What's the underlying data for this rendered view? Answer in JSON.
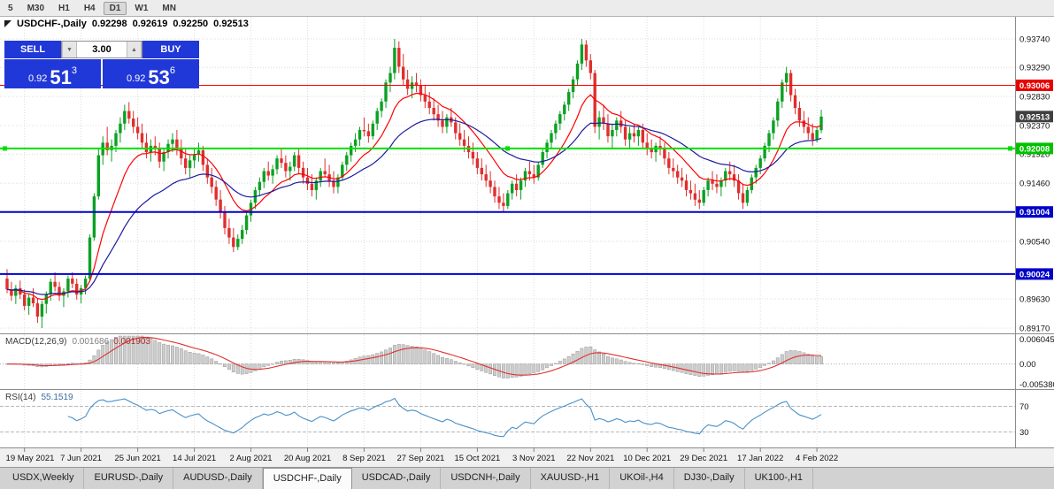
{
  "toolbar": {
    "timeframes": [
      "5",
      "M30",
      "H1",
      "H4",
      "D1",
      "W1",
      "MN"
    ],
    "active": "D1"
  },
  "header": {
    "symbol": "USDCHF-,Daily",
    "open": "0.92298",
    "high": "0.92619",
    "low": "0.92250",
    "close": "0.92513"
  },
  "one_click": {
    "sell_label": "SELL",
    "buy_label": "BUY",
    "volume": "3.00",
    "volume_down_icon": "▼",
    "volume_up_icon": "▲",
    "bid_small": "0.92",
    "bid_big": "51",
    "bid_sup": "3",
    "ask_small": "0.92",
    "ask_big": "53",
    "ask_sup": "6",
    "panel_color": "#2138d8"
  },
  "tabs": {
    "items": [
      "USDX,Weekly",
      "EURUSD-,Daily",
      "AUDUSD-,Daily",
      "USDCHF-,Daily",
      "USDCAD-,Daily",
      "USDCNH-,Daily",
      "XAUUSD-,H1",
      "UKOil-,H4",
      "DJ30-,Daily",
      "UK100-,H1"
    ],
    "active": "USDCHF-,Daily"
  },
  "chart_data": {
    "type": "candlestick",
    "symbol": "USDCHF-,Daily",
    "up_color": "#0ba123",
    "down_color": "#e02e2e",
    "ma_fast_color": "#ff0000",
    "ma_slow_color": "#1c1c9e",
    "price_scale": {
      "min": 0.8907,
      "max": 0.9409,
      "ticks": [
        0.9374,
        0.9329,
        0.9283,
        0.9237,
        0.9192,
        0.9146,
        0.9054,
        0.8963,
        0.8917
      ]
    },
    "hlines": [
      {
        "price": 0.93006,
        "label": "0.93006",
        "color": "#ff0000",
        "badge": "#e60000",
        "width": 1,
        "selected": false
      },
      {
        "price": 0.92008,
        "label": "0.92008",
        "color": "#00e000",
        "badge": "#00c000",
        "width": 2,
        "selected": true
      },
      {
        "price": 0.91004,
        "label": "0.91004",
        "color": "#0000d0",
        "badge": "#0000c8",
        "width": 2,
        "selected": false
      },
      {
        "price": 0.90024,
        "label": "0.90024",
        "color": "#0000d0",
        "badge": "#0000c8",
        "width": 2,
        "selected": false
      }
    ],
    "current_price": {
      "value": 0.92513,
      "label": "0.92513",
      "color": "#404040"
    },
    "dates": [
      "19 May 2021",
      "7 Jun 2021",
      "25 Jun 2021",
      "14 Jul 2021",
      "2 Aug 2021",
      "20 Aug 2021",
      "8 Sep 2021",
      "27 Sep 2021",
      "15 Oct 2021",
      "3 Nov 2021",
      "22 Nov 2021",
      "10 Dec 2021",
      "29 Dec 2021",
      "17 Jan 2022",
      "4 Feb 2022"
    ],
    "macd": {
      "label": "MACD(12,26,9)",
      "value": "0.001686",
      "signal": "0.001903",
      "ymax": 0.006045,
      "ymin": -0.00538,
      "axis_labels": [
        "0.006045",
        "0.00",
        "-0.005380"
      ],
      "hist_fill": "#cdcdcd",
      "hist_stroke": "#9b9b9b",
      "signal_color": "#e03030"
    },
    "rsi": {
      "label": "RSI(14)",
      "value": "55.1519",
      "levels": [
        70,
        30
      ],
      "color": "#4a90c8"
    },
    "candles": [
      [
        0.8995,
        0.901,
        0.8972,
        0.8978
      ],
      [
        0.8978,
        0.899,
        0.896,
        0.8968
      ],
      [
        0.8968,
        0.8985,
        0.8955,
        0.898
      ],
      [
        0.898,
        0.8992,
        0.8963,
        0.897
      ],
      [
        0.897,
        0.8978,
        0.8945,
        0.8952
      ],
      [
        0.8952,
        0.897,
        0.8938,
        0.8965
      ],
      [
        0.8965,
        0.898,
        0.895,
        0.8956
      ],
      [
        0.8956,
        0.8964,
        0.8925,
        0.8935
      ],
      [
        0.8935,
        0.896,
        0.8917,
        0.8955
      ],
      [
        0.8955,
        0.8975,
        0.894,
        0.897
      ],
      [
        0.897,
        0.8995,
        0.896,
        0.899
      ],
      [
        0.899,
        0.9005,
        0.8975,
        0.8982
      ],
      [
        0.8982,
        0.899,
        0.896,
        0.8968
      ],
      [
        0.8968,
        0.898,
        0.895,
        0.8975
      ],
      [
        0.8975,
        0.9,
        0.8965,
        0.8995
      ],
      [
        0.8995,
        0.9005,
        0.898,
        0.8987
      ],
      [
        0.8987,
        0.8995,
        0.8962,
        0.897
      ],
      [
        0.897,
        0.8985,
        0.8956,
        0.898
      ],
      [
        0.898,
        0.9,
        0.897,
        0.8995
      ],
      [
        0.8995,
        0.9065,
        0.899,
        0.906
      ],
      [
        0.906,
        0.913,
        0.9055,
        0.9125
      ],
      [
        0.9125,
        0.92,
        0.912,
        0.919
      ],
      [
        0.919,
        0.922,
        0.9175,
        0.921
      ],
      [
        0.921,
        0.9235,
        0.919,
        0.9198
      ],
      [
        0.9198,
        0.9215,
        0.918,
        0.9205
      ],
      [
        0.9205,
        0.923,
        0.9195,
        0.9225
      ],
      [
        0.9225,
        0.925,
        0.921,
        0.924
      ],
      [
        0.924,
        0.927,
        0.923,
        0.926
      ],
      [
        0.926,
        0.9274,
        0.924,
        0.9248
      ],
      [
        0.9248,
        0.926,
        0.9225,
        0.9235
      ],
      [
        0.9235,
        0.925,
        0.9215,
        0.9225
      ],
      [
        0.9225,
        0.924,
        0.92,
        0.921
      ],
      [
        0.921,
        0.9225,
        0.9185,
        0.9195
      ],
      [
        0.9195,
        0.9215,
        0.918,
        0.9205
      ],
      [
        0.9205,
        0.922,
        0.919,
        0.92
      ],
      [
        0.92,
        0.921,
        0.917,
        0.918
      ],
      [
        0.918,
        0.92,
        0.9165,
        0.9195
      ],
      [
        0.9195,
        0.9215,
        0.9185,
        0.9208
      ],
      [
        0.9208,
        0.9225,
        0.9195,
        0.9215
      ],
      [
        0.9215,
        0.923,
        0.919,
        0.92
      ],
      [
        0.92,
        0.9215,
        0.9175,
        0.9185
      ],
      [
        0.9185,
        0.92,
        0.916,
        0.917
      ],
      [
        0.917,
        0.919,
        0.9155,
        0.9182
      ],
      [
        0.9182,
        0.92,
        0.917,
        0.9192
      ],
      [
        0.9192,
        0.921,
        0.918,
        0.9198
      ],
      [
        0.9198,
        0.9205,
        0.9165,
        0.9175
      ],
      [
        0.9175,
        0.9185,
        0.9145,
        0.9155
      ],
      [
        0.9155,
        0.917,
        0.913,
        0.914
      ],
      [
        0.914,
        0.915,
        0.911,
        0.912
      ],
      [
        0.912,
        0.9135,
        0.909,
        0.91
      ],
      [
        0.91,
        0.911,
        0.9065,
        0.9075
      ],
      [
        0.9075,
        0.909,
        0.905,
        0.906
      ],
      [
        0.906,
        0.9075,
        0.9037,
        0.9045
      ],
      [
        0.9045,
        0.9065,
        0.904,
        0.9058
      ],
      [
        0.9058,
        0.908,
        0.905,
        0.9072
      ],
      [
        0.9072,
        0.91,
        0.9065,
        0.9095
      ],
      [
        0.9095,
        0.912,
        0.9085,
        0.9115
      ],
      [
        0.9115,
        0.914,
        0.9105,
        0.9135
      ],
      [
        0.9135,
        0.9155,
        0.9125,
        0.9148
      ],
      [
        0.9148,
        0.917,
        0.9138,
        0.9165
      ],
      [
        0.9165,
        0.918,
        0.915,
        0.9158
      ],
      [
        0.9158,
        0.9175,
        0.9145,
        0.9168
      ],
      [
        0.9168,
        0.919,
        0.916,
        0.9185
      ],
      [
        0.9185,
        0.92,
        0.917,
        0.9178
      ],
      [
        0.9178,
        0.919,
        0.9155,
        0.9165
      ],
      [
        0.9165,
        0.918,
        0.915,
        0.9172
      ],
      [
        0.9172,
        0.9195,
        0.9165,
        0.919
      ],
      [
        0.919,
        0.92,
        0.916,
        0.917
      ],
      [
        0.917,
        0.918,
        0.9145,
        0.9155
      ],
      [
        0.9155,
        0.917,
        0.9135,
        0.9145
      ],
      [
        0.9145,
        0.916,
        0.9125,
        0.9135
      ],
      [
        0.9135,
        0.9155,
        0.912,
        0.915
      ],
      [
        0.915,
        0.917,
        0.914,
        0.9165
      ],
      [
        0.9165,
        0.9185,
        0.9155,
        0.916
      ],
      [
        0.916,
        0.9175,
        0.914,
        0.915
      ],
      [
        0.915,
        0.9165,
        0.913,
        0.914
      ],
      [
        0.914,
        0.916,
        0.913,
        0.9155
      ],
      [
        0.9155,
        0.918,
        0.915,
        0.9175
      ],
      [
        0.9175,
        0.9195,
        0.9165,
        0.919
      ],
      [
        0.919,
        0.921,
        0.918,
        0.9205
      ],
      [
        0.9205,
        0.9225,
        0.9195,
        0.9215
      ],
      [
        0.9215,
        0.9235,
        0.9205,
        0.923
      ],
      [
        0.923,
        0.925,
        0.922,
        0.9228
      ],
      [
        0.9228,
        0.924,
        0.921,
        0.922
      ],
      [
        0.922,
        0.9245,
        0.9215,
        0.924
      ],
      [
        0.924,
        0.9265,
        0.923,
        0.926
      ],
      [
        0.926,
        0.928,
        0.925,
        0.9275
      ],
      [
        0.9275,
        0.931,
        0.9265,
        0.9305
      ],
      [
        0.9305,
        0.933,
        0.929,
        0.932
      ],
      [
        0.932,
        0.9374,
        0.931,
        0.936
      ],
      [
        0.936,
        0.937,
        0.932,
        0.933
      ],
      [
        0.933,
        0.935,
        0.93,
        0.931
      ],
      [
        0.931,
        0.9325,
        0.9285,
        0.9295
      ],
      [
        0.9295,
        0.9315,
        0.928,
        0.9305
      ],
      [
        0.9305,
        0.932,
        0.929,
        0.93
      ],
      [
        0.93,
        0.931,
        0.9275,
        0.9285
      ],
      [
        0.9285,
        0.93,
        0.9265,
        0.9275
      ],
      [
        0.9275,
        0.929,
        0.9255,
        0.9265
      ],
      [
        0.9265,
        0.928,
        0.9245,
        0.9255
      ],
      [
        0.9255,
        0.927,
        0.9235,
        0.9245
      ],
      [
        0.9245,
        0.926,
        0.9225,
        0.9235
      ],
      [
        0.9235,
        0.9255,
        0.9225,
        0.925
      ],
      [
        0.925,
        0.9265,
        0.9235,
        0.9242
      ],
      [
        0.9242,
        0.925,
        0.9215,
        0.9225
      ],
      [
        0.9225,
        0.924,
        0.9205,
        0.9215
      ],
      [
        0.9215,
        0.923,
        0.9195,
        0.9205
      ],
      [
        0.9205,
        0.922,
        0.9185,
        0.9195
      ],
      [
        0.9195,
        0.921,
        0.9175,
        0.9185
      ],
      [
        0.9185,
        0.9195,
        0.916,
        0.917
      ],
      [
        0.917,
        0.9185,
        0.915,
        0.916
      ],
      [
        0.916,
        0.9175,
        0.914,
        0.915
      ],
      [
        0.915,
        0.9165,
        0.913,
        0.914
      ],
      [
        0.914,
        0.915,
        0.9115,
        0.9125
      ],
      [
        0.9125,
        0.914,
        0.9105,
        0.9115
      ],
      [
        0.9115,
        0.913,
        0.91,
        0.911
      ],
      [
        0.911,
        0.9135,
        0.9105,
        0.913
      ],
      [
        0.913,
        0.915,
        0.912,
        0.9145
      ],
      [
        0.9145,
        0.916,
        0.9125,
        0.9135
      ],
      [
        0.9135,
        0.9155,
        0.912,
        0.915
      ],
      [
        0.915,
        0.917,
        0.914,
        0.9165
      ],
      [
        0.9165,
        0.918,
        0.915,
        0.916
      ],
      [
        0.916,
        0.9175,
        0.9145,
        0.9155
      ],
      [
        0.9155,
        0.918,
        0.915,
        0.9175
      ],
      [
        0.9175,
        0.92,
        0.917,
        0.9195
      ],
      [
        0.9195,
        0.9215,
        0.9185,
        0.921
      ],
      [
        0.921,
        0.923,
        0.92,
        0.9225
      ],
      [
        0.9225,
        0.9245,
        0.9215,
        0.924
      ],
      [
        0.924,
        0.926,
        0.923,
        0.9255
      ],
      [
        0.9255,
        0.9275,
        0.9245,
        0.927
      ],
      [
        0.927,
        0.9295,
        0.926,
        0.929
      ],
      [
        0.929,
        0.9315,
        0.928,
        0.931
      ],
      [
        0.931,
        0.934,
        0.93,
        0.9335
      ],
      [
        0.9335,
        0.9374,
        0.9325,
        0.9365
      ],
      [
        0.9365,
        0.9372,
        0.933,
        0.934
      ],
      [
        0.934,
        0.935,
        0.931,
        0.932
      ],
      [
        0.932,
        0.9325,
        0.9225,
        0.9235
      ],
      [
        0.9235,
        0.926,
        0.9215,
        0.925
      ],
      [
        0.925,
        0.927,
        0.923,
        0.924
      ],
      [
        0.924,
        0.9255,
        0.921,
        0.922
      ],
      [
        0.922,
        0.924,
        0.92,
        0.923
      ],
      [
        0.923,
        0.925,
        0.922,
        0.9245
      ],
      [
        0.9245,
        0.926,
        0.9225,
        0.9235
      ],
      [
        0.9235,
        0.9245,
        0.9205,
        0.9215
      ],
      [
        0.9215,
        0.9235,
        0.92,
        0.9225
      ],
      [
        0.9225,
        0.924,
        0.921,
        0.922
      ],
      [
        0.922,
        0.9235,
        0.9205,
        0.923
      ],
      [
        0.923,
        0.924,
        0.92,
        0.921
      ],
      [
        0.921,
        0.9225,
        0.919,
        0.92
      ],
      [
        0.92,
        0.9215,
        0.9185,
        0.9195
      ],
      [
        0.9195,
        0.921,
        0.918,
        0.9205
      ],
      [
        0.9205,
        0.922,
        0.919,
        0.92
      ],
      [
        0.92,
        0.921,
        0.9175,
        0.9185
      ],
      [
        0.9185,
        0.9195,
        0.916,
        0.917
      ],
      [
        0.917,
        0.9185,
        0.9155,
        0.9165
      ],
      [
        0.9165,
        0.9175,
        0.9145,
        0.9155
      ],
      [
        0.9155,
        0.917,
        0.914,
        0.915
      ],
      [
        0.915,
        0.916,
        0.9125,
        0.9135
      ],
      [
        0.9135,
        0.915,
        0.912,
        0.913
      ],
      [
        0.913,
        0.9145,
        0.911,
        0.912
      ],
      [
        0.912,
        0.9135,
        0.9105,
        0.9115
      ],
      [
        0.9115,
        0.914,
        0.911,
        0.9135
      ],
      [
        0.9135,
        0.9155,
        0.9125,
        0.915
      ],
      [
        0.915,
        0.9165,
        0.9135,
        0.9145
      ],
      [
        0.9145,
        0.916,
        0.913,
        0.914
      ],
      [
        0.914,
        0.9155,
        0.9125,
        0.915
      ],
      [
        0.915,
        0.917,
        0.914,
        0.9165
      ],
      [
        0.9165,
        0.918,
        0.915,
        0.916
      ],
      [
        0.916,
        0.9175,
        0.914,
        0.915
      ],
      [
        0.915,
        0.916,
        0.912,
        0.913
      ],
      [
        0.913,
        0.9145,
        0.9105,
        0.9115
      ],
      [
        0.9115,
        0.914,
        0.911,
        0.9135
      ],
      [
        0.9135,
        0.916,
        0.913,
        0.9155
      ],
      [
        0.9155,
        0.9175,
        0.9145,
        0.917
      ],
      [
        0.917,
        0.919,
        0.916,
        0.9185
      ],
      [
        0.9185,
        0.921,
        0.918,
        0.9205
      ],
      [
        0.9205,
        0.923,
        0.9195,
        0.9225
      ],
      [
        0.9225,
        0.925,
        0.9215,
        0.9245
      ],
      [
        0.9245,
        0.928,
        0.9235,
        0.9275
      ],
      [
        0.9275,
        0.931,
        0.9265,
        0.9305
      ],
      [
        0.9305,
        0.933,
        0.929,
        0.932
      ],
      [
        0.932,
        0.9325,
        0.9275,
        0.9285
      ],
      [
        0.9285,
        0.9295,
        0.9255,
        0.9265
      ],
      [
        0.9265,
        0.9275,
        0.9235,
        0.9245
      ],
      [
        0.9245,
        0.926,
        0.9225,
        0.9235
      ],
      [
        0.9235,
        0.925,
        0.9215,
        0.9225
      ],
      [
        0.9225,
        0.924,
        0.9205,
        0.9215
      ],
      [
        0.9215,
        0.9235,
        0.921,
        0.923
      ],
      [
        0.92298,
        0.92619,
        0.9225,
        0.92513
      ]
    ]
  }
}
